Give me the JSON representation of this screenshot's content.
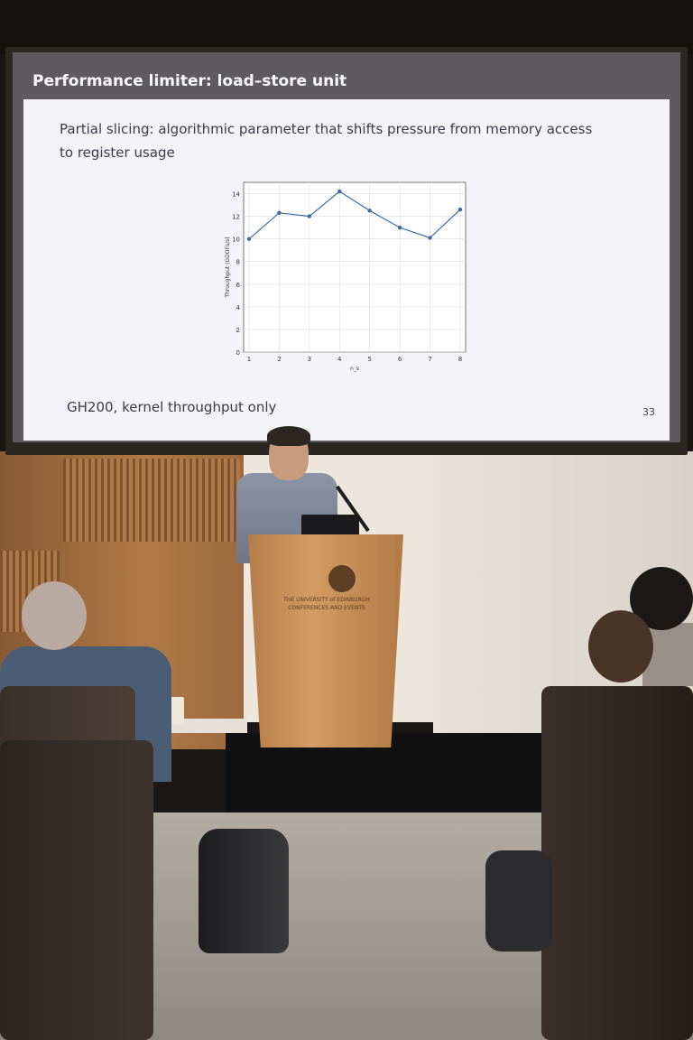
{
  "slide": {
    "title": "Performance limiter: load–store unit",
    "text": "Partial slicing: algorithmic parameter that shifts pressure from memory access to register usage",
    "footer": "GH200, kernel throughput only",
    "page_number": "33"
  },
  "podium": {
    "text_line1": "THE UNIVERSITY of EDINBURGH",
    "text_line2": "CONFERENCES AND EVENTS"
  },
  "chart_data": {
    "type": "line",
    "x": [
      1,
      2,
      3,
      4,
      5,
      6,
      7,
      8
    ],
    "y": [
      10.0,
      12.3,
      12.0,
      14.2,
      12.5,
      11.0,
      10.1,
      12.6
    ],
    "ylabel": "Throughput (GDOFs/s)",
    "xlabel": "n_s",
    "xlim": [
      1,
      8
    ],
    "ylim": [
      0,
      15
    ],
    "yticks": [
      0,
      2,
      4,
      6,
      8,
      10,
      12,
      14
    ],
    "grid": true,
    "color": "#3d6ca3"
  }
}
